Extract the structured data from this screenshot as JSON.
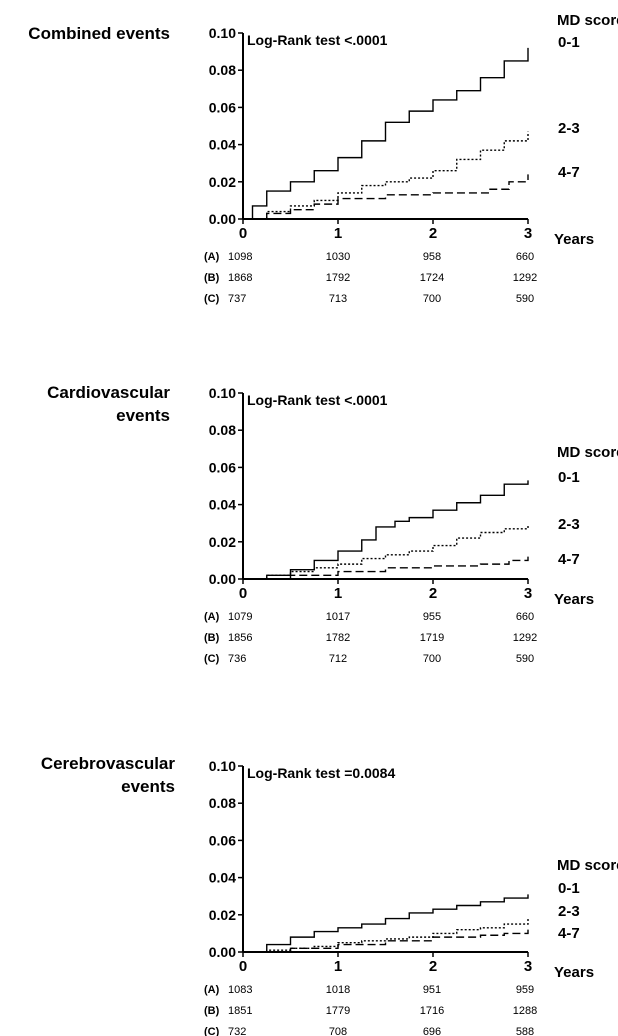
{
  "chart_data": [
    {
      "type": "line",
      "title": "Combined events",
      "annotation": "Log-Rank test <.0001",
      "xlabel": "Years",
      "xlim": [
        0,
        3
      ],
      "ylim": [
        0,
        0.1
      ],
      "xticks": [
        "0",
        "1",
        "2",
        "3"
      ],
      "yticks": [
        "0.00",
        "0.02",
        "0.04",
        "0.06",
        "0.08",
        "0.10"
      ],
      "legend_title": "MD score",
      "series": [
        {
          "name": "0-1",
          "style": "solid",
          "x": [
            0,
            0.1,
            0.25,
            0.5,
            0.75,
            1.0,
            1.25,
            1.5,
            1.75,
            2.0,
            2.25,
            2.5,
            2.75,
            3.0
          ],
          "y": [
            0,
            0.007,
            0.015,
            0.02,
            0.026,
            0.033,
            0.042,
            0.052,
            0.058,
            0.064,
            0.069,
            0.076,
            0.085,
            0.092
          ]
        },
        {
          "name": "2-3",
          "style": "dotted",
          "x": [
            0,
            0.25,
            0.5,
            0.75,
            1.0,
            1.25,
            1.5,
            1.75,
            2.0,
            2.25,
            2.5,
            2.75,
            3.0
          ],
          "y": [
            0,
            0.004,
            0.007,
            0.01,
            0.014,
            0.018,
            0.02,
            0.022,
            0.026,
            0.032,
            0.037,
            0.042,
            0.047
          ]
        },
        {
          "name": "4-7",
          "style": "dashed",
          "x": [
            0,
            0.25,
            0.5,
            0.75,
            1.0,
            1.25,
            1.5,
            2.0,
            2.5,
            2.6,
            2.8,
            3.0
          ],
          "y": [
            0,
            0.003,
            0.005,
            0.008,
            0.011,
            0.011,
            0.013,
            0.014,
            0.014,
            0.016,
            0.02,
            0.024
          ]
        }
      ],
      "risk_table": [
        {
          "group": "(A)",
          "values": [
            "1098",
            "1030",
            "958",
            "660"
          ]
        },
        {
          "group": "(B)",
          "values": [
            "1868",
            "1792",
            "1724",
            "1292"
          ]
        },
        {
          "group": "(C)",
          "values": [
            "737",
            "713",
            "700",
            "590"
          ]
        }
      ]
    },
    {
      "type": "line",
      "title": "Cardiovascular events",
      "annotation": "Log-Rank test <.0001",
      "xlabel": "Years",
      "xlim": [
        0,
        3
      ],
      "ylim": [
        0,
        0.1
      ],
      "xticks": [
        "0",
        "1",
        "2",
        "3"
      ],
      "yticks": [
        "0.00",
        "0.02",
        "0.04",
        "0.06",
        "0.08",
        "0.10"
      ],
      "legend_title": "MD score",
      "series": [
        {
          "name": "0-1",
          "style": "solid",
          "x": [
            0,
            0.25,
            0.5,
            0.75,
            1.0,
            1.25,
            1.4,
            1.6,
            1.75,
            2.0,
            2.25,
            2.5,
            2.75,
            3.0
          ],
          "y": [
            0,
            0.002,
            0.005,
            0.01,
            0.015,
            0.021,
            0.028,
            0.031,
            0.033,
            0.037,
            0.041,
            0.045,
            0.051,
            0.053
          ]
        },
        {
          "name": "2-3",
          "style": "dotted",
          "x": [
            0,
            0.25,
            0.5,
            0.75,
            1.0,
            1.25,
            1.5,
            1.75,
            2.0,
            2.25,
            2.5,
            2.75,
            3.0
          ],
          "y": [
            0,
            0.002,
            0.004,
            0.006,
            0.008,
            0.011,
            0.013,
            0.015,
            0.018,
            0.022,
            0.025,
            0.027,
            0.029
          ]
        },
        {
          "name": "4-7",
          "style": "dashed",
          "x": [
            0,
            0.5,
            1.0,
            1.5,
            2.0,
            2.5,
            2.8,
            3.0
          ],
          "y": [
            0,
            0.002,
            0.004,
            0.006,
            0.007,
            0.008,
            0.01,
            0.012
          ]
        }
      ],
      "risk_table": [
        {
          "group": "(A)",
          "values": [
            "1079",
            "1017",
            "955",
            "660"
          ]
        },
        {
          "group": "(B)",
          "values": [
            "1856",
            "1782",
            "1719",
            "1292"
          ]
        },
        {
          "group": "(C)",
          "values": [
            "736",
            "712",
            "700",
            "590"
          ]
        }
      ]
    },
    {
      "type": "line",
      "title": "Cerebrovascular events",
      "annotation": "Log-Rank test =0.0084",
      "xlabel": "Years",
      "xlim": [
        0,
        3
      ],
      "ylim": [
        0,
        0.1
      ],
      "xticks": [
        "0",
        "1",
        "2",
        "3"
      ],
      "yticks": [
        "0.00",
        "0.02",
        "0.04",
        "0.06",
        "0.08",
        "0.10"
      ],
      "legend_title": "MD score",
      "series": [
        {
          "name": "0-1",
          "style": "solid",
          "x": [
            0,
            0.25,
            0.5,
            0.75,
            1.0,
            1.25,
            1.5,
            1.75,
            2.0,
            2.25,
            2.5,
            2.75,
            3.0
          ],
          "y": [
            0,
            0.004,
            0.008,
            0.011,
            0.013,
            0.015,
            0.018,
            0.021,
            0.023,
            0.025,
            0.027,
            0.029,
            0.031
          ]
        },
        {
          "name": "2-3",
          "style": "dotted",
          "x": [
            0,
            0.25,
            0.5,
            0.75,
            1.0,
            1.25,
            1.5,
            1.75,
            2.0,
            2.25,
            2.5,
            2.75,
            3.0
          ],
          "y": [
            0,
            0.001,
            0.002,
            0.003,
            0.005,
            0.006,
            0.007,
            0.008,
            0.01,
            0.012,
            0.013,
            0.015,
            0.018
          ]
        },
        {
          "name": "4-7",
          "style": "dashed",
          "x": [
            0,
            0.5,
            1.0,
            1.5,
            2.0,
            2.5,
            2.75,
            3.0
          ],
          "y": [
            0,
            0.002,
            0.004,
            0.006,
            0.008,
            0.009,
            0.01,
            0.012
          ]
        }
      ],
      "risk_table": [
        {
          "group": "(A)",
          "values": [
            "1083",
            "1018",
            "951",
            "959"
          ]
        },
        {
          "group": "(B)",
          "values": [
            "1851",
            "1779",
            "1716",
            "1288"
          ]
        },
        {
          "group": "(C)",
          "values": [
            "732",
            "708",
            "696",
            "588"
          ]
        }
      ]
    }
  ]
}
